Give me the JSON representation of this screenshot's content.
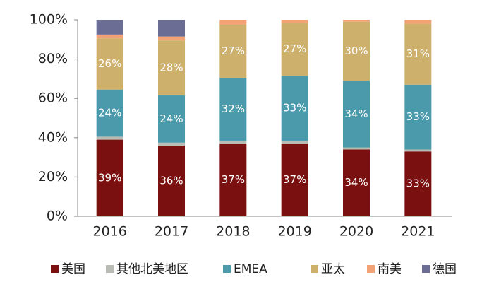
{
  "chart_data": {
    "type": "stacked-bar",
    "categories": [
      "2016",
      "2017",
      "2018",
      "2019",
      "2020",
      "2021"
    ],
    "series": [
      {
        "name": "美国",
        "color": "#7a1010",
        "values": [
          39,
          36,
          37,
          37,
          34,
          33
        ],
        "value_labels": [
          "39%",
          "36%",
          "37%",
          "37%",
          "34%",
          "33%"
        ]
      },
      {
        "name": "其他北美地区",
        "color": "#b9bcb4",
        "values": [
          1.5,
          1.5,
          1.5,
          1.5,
          1,
          1
        ]
      },
      {
        "name": "EMEA",
        "color": "#4a9aab",
        "values": [
          24,
          24,
          32,
          33,
          34,
          33
        ],
        "value_labels": [
          "24%",
          "24%",
          "32%",
          "33%",
          "34%",
          "33%"
        ]
      },
      {
        "name": "亚太",
        "color": "#cdb06c",
        "values": [
          26,
          28,
          27,
          27,
          30,
          31
        ],
        "value_labels": [
          "26%",
          "28%",
          "27%",
          "27%",
          "30%",
          "31%"
        ]
      },
      {
        "name": "南美",
        "color": "#f2a274",
        "values": [
          2,
          2,
          2.5,
          1.5,
          1,
          2
        ]
      },
      {
        "name": "德国",
        "color": "#6b6d94",
        "values": [
          7.5,
          8.5,
          0,
          0,
          0,
          0
        ]
      }
    ],
    "ylim": [
      0,
      100
    ],
    "yticks": [
      {
        "value": 0,
        "label": "0%"
      },
      {
        "value": 20,
        "label": "20%"
      },
      {
        "value": 40,
        "label": "40%"
      },
      {
        "value": 60,
        "label": "60%"
      },
      {
        "value": 80,
        "label": "80%"
      },
      {
        "value": 100,
        "label": "100%"
      }
    ],
    "legend": "bottom"
  }
}
